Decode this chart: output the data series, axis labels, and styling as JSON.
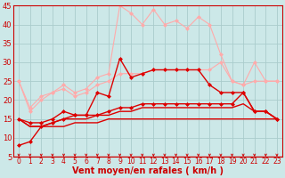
{
  "title": "",
  "xlabel": "Vent moyen/en rafales ( km/h )",
  "ylabel": "",
  "background_color": "#cce8e8",
  "grid_color": "#aacccc",
  "xlim": [
    -0.5,
    23.5
  ],
  "ylim": [
    5,
    45
  ],
  "yticks": [
    5,
    10,
    15,
    20,
    25,
    30,
    35,
    40,
    45
  ],
  "xticks": [
    0,
    1,
    2,
    3,
    4,
    5,
    6,
    7,
    8,
    9,
    10,
    11,
    12,
    13,
    14,
    15,
    16,
    17,
    18,
    19,
    20,
    21,
    22,
    23
  ],
  "series": [
    {
      "x": [
        0,
        1,
        2,
        3,
        4,
        5,
        6,
        7,
        8,
        9,
        10,
        11,
        12,
        13,
        14,
        15,
        16,
        17,
        18,
        19,
        20,
        21,
        22,
        23
      ],
      "y": [
        25,
        18,
        21,
        22,
        24,
        22,
        23,
        26,
        27,
        45,
        43,
        40,
        44,
        40,
        41,
        39,
        42,
        40,
        32,
        25,
        24,
        30,
        25,
        25
      ],
      "color": "#ffaaaa",
      "marker": "D",
      "markersize": 2,
      "linewidth": 0.8,
      "linestyle": "-"
    },
    {
      "x": [
        0,
        1,
        2,
        3,
        4,
        5,
        6,
        7,
        8,
        9,
        10,
        11,
        12,
        13,
        14,
        15,
        16,
        17,
        18,
        19,
        20,
        21,
        22,
        23
      ],
      "y": [
        25,
        17,
        20,
        22,
        23,
        21,
        22,
        24,
        25,
        27,
        27,
        27,
        28,
        28,
        28,
        28,
        28,
        28,
        30,
        25,
        24,
        25,
        25,
        25
      ],
      "color": "#ffaaaa",
      "marker": "D",
      "markersize": 2,
      "linewidth": 0.8,
      "linestyle": "-"
    },
    {
      "x": [
        0,
        1,
        2,
        3,
        4,
        5,
        6,
        7,
        8,
        9,
        10,
        11,
        12,
        13,
        14,
        15,
        16,
        17,
        18,
        19,
        20,
        21,
        22,
        23
      ],
      "y": [
        8,
        9,
        13,
        14,
        15,
        16,
        16,
        22,
        21,
        31,
        26,
        27,
        28,
        28,
        28,
        28,
        28,
        24,
        22,
        22,
        22,
        17,
        17,
        15
      ],
      "color": "#dd0000",
      "marker": "D",
      "markersize": 2,
      "linewidth": 1.0,
      "linestyle": "-"
    },
    {
      "x": [
        0,
        1,
        2,
        3,
        4,
        5,
        6,
        7,
        8,
        9,
        10,
        11,
        12,
        13,
        14,
        15,
        16,
        17,
        18,
        19,
        20,
        21,
        22,
        23
      ],
      "y": [
        15,
        14,
        14,
        15,
        17,
        16,
        16,
        16,
        17,
        18,
        18,
        19,
        19,
        19,
        19,
        19,
        19,
        19,
        19,
        19,
        22,
        17,
        17,
        15
      ],
      "color": "#dd0000",
      "marker": "D",
      "markersize": 2,
      "linewidth": 1.0,
      "linestyle": "-"
    },
    {
      "x": [
        0,
        1,
        2,
        3,
        4,
        5,
        6,
        7,
        8,
        9,
        10,
        11,
        12,
        13,
        14,
        15,
        16,
        17,
        18,
        19,
        20,
        21,
        22,
        23
      ],
      "y": [
        15,
        13,
        13,
        14,
        15,
        15,
        15,
        16,
        16,
        17,
        17,
        18,
        18,
        18,
        18,
        18,
        18,
        18,
        18,
        18,
        19,
        17,
        17,
        15
      ],
      "color": "#dd0000",
      "marker": null,
      "markersize": 0,
      "linewidth": 1.0,
      "linestyle": "-"
    },
    {
      "x": [
        0,
        1,
        2,
        3,
        4,
        5,
        6,
        7,
        8,
        9,
        10,
        11,
        12,
        13,
        14,
        15,
        16,
        17,
        18,
        19,
        20,
        21,
        22,
        23
      ],
      "y": [
        15,
        13,
        13,
        13,
        13,
        14,
        14,
        14,
        15,
        15,
        15,
        15,
        15,
        15,
        15,
        15,
        15,
        15,
        15,
        15,
        15,
        15,
        15,
        15
      ],
      "color": "#dd0000",
      "marker": null,
      "markersize": 0,
      "linewidth": 1.0,
      "linestyle": "-"
    }
  ],
  "tick_color": "#cc0000",
  "xlabel_color": "#cc0000",
  "xlabel_fontsize": 7,
  "ytick_fontsize": 6,
  "xtick_fontsize": 5.5
}
